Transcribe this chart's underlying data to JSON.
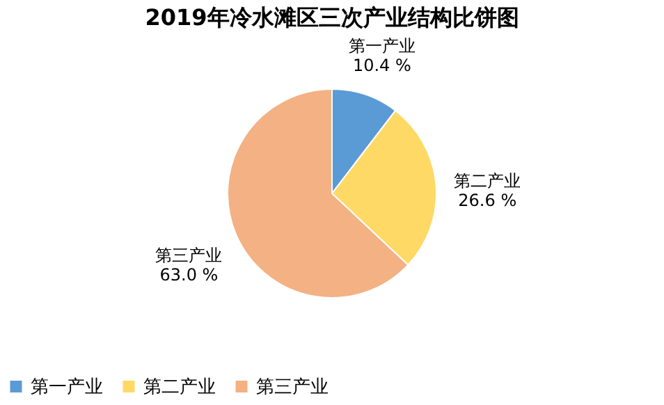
{
  "chart_data": {
    "type": "pie",
    "title": "2019年冷水滩区三次产业结构比饼图",
    "categories": [
      "第一产业",
      "第二产业",
      "第三产业"
    ],
    "values": [
      10.4,
      26.6,
      63.0
    ],
    "colors": [
      "#5b9bd5",
      "#ffd966",
      "#f4b183"
    ],
    "value_labels": [
      "10.4 %",
      "26.6 %",
      "63.0 %"
    ],
    "legend": "bottom"
  }
}
